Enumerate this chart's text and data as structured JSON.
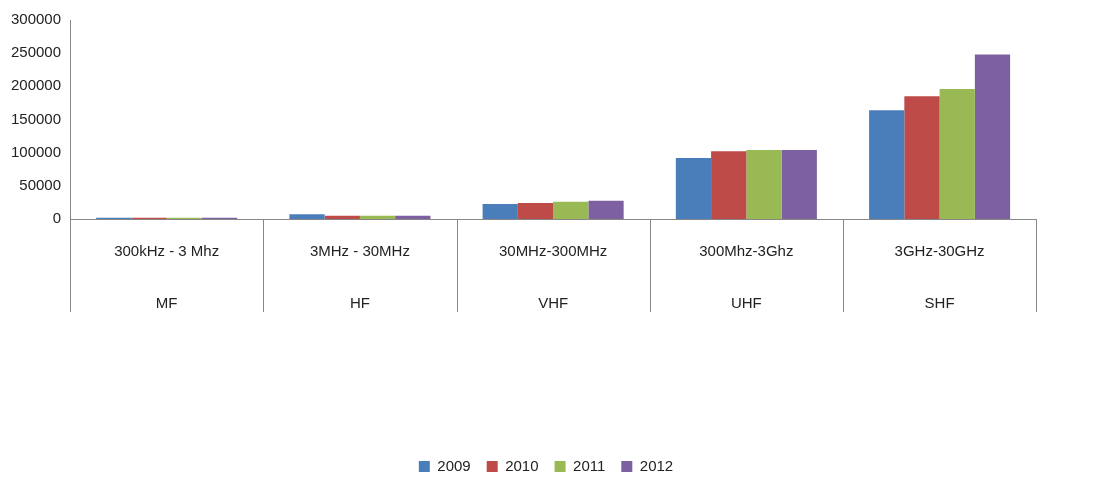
{
  "chart_data": {
    "type": "bar",
    "categories": [
      "300kHz - 3 Mhz",
      "3MHz - 30MHz",
      "30MHz-300MHz",
      "300Mhz-3Ghz",
      "3GHz-30GHz"
    ],
    "annotations": [
      "MF",
      "HF",
      "VHF",
      "UHF",
      "SHF"
    ],
    "series": [
      {
        "name": "2009",
        "color": "#4a7ebb",
        "values": [
          2000,
          7000,
          22500,
          92000,
          164000
        ]
      },
      {
        "name": "2010",
        "color": "#be4b48",
        "values": [
          2000,
          5000,
          24000,
          102000,
          185000
        ]
      },
      {
        "name": "2011",
        "color": "#98b954",
        "values": [
          2000,
          5000,
          26000,
          104000,
          196000
        ]
      },
      {
        "name": "2012",
        "color": "#7d60a0",
        "values": [
          2000,
          5000,
          27500,
          104000,
          248000
        ]
      }
    ],
    "ylim": [
      0,
      300000
    ],
    "yticks": [
      0,
      50000,
      100000,
      150000,
      200000,
      250000,
      300000
    ],
    "grid": false,
    "legend": "bottom"
  }
}
